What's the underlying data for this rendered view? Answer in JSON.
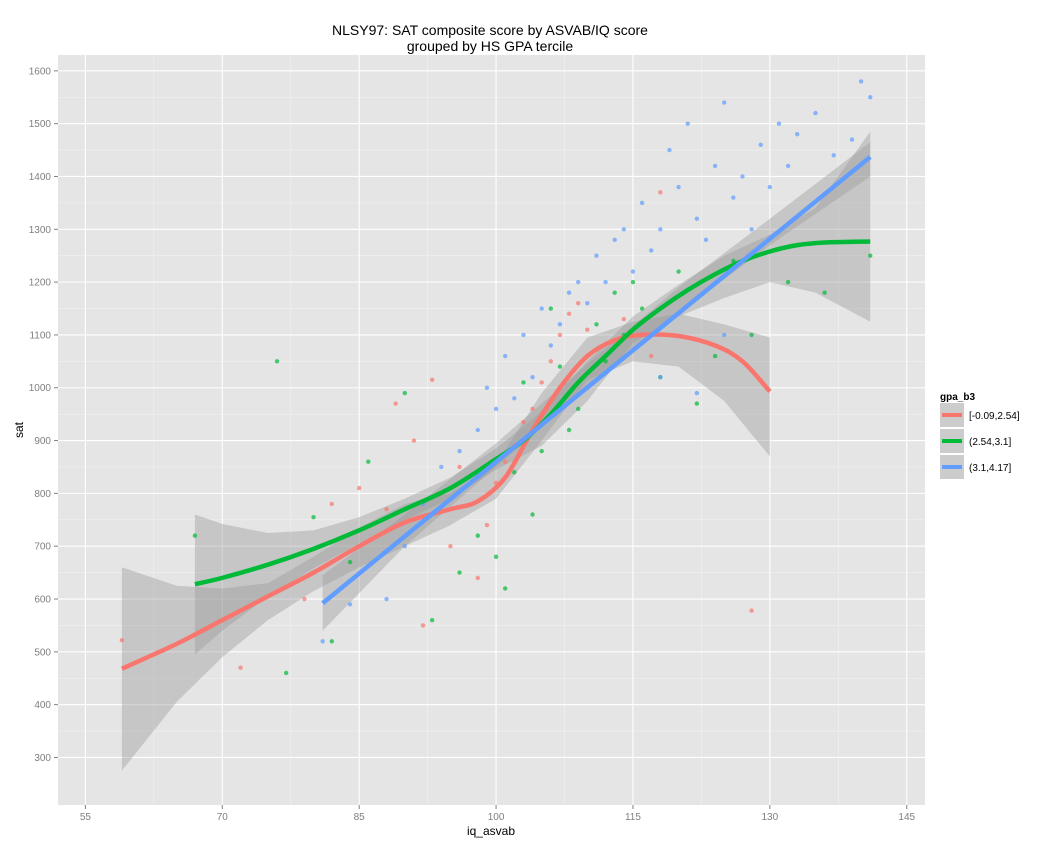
{
  "chart_data": {
    "type": "scatter",
    "title": "NLSY97: SAT composite score by ASVAB/IQ score",
    "subtitle": "grouped by HS GPA tercile",
    "xlabel": "iq_asvab",
    "ylabel": "sat",
    "xlim": [
      52,
      147
    ],
    "ylim": [
      210,
      1630
    ],
    "x_ticks": [
      55,
      70,
      85,
      100,
      115,
      130,
      145
    ],
    "y_ticks": [
      300,
      400,
      500,
      600,
      700,
      800,
      900,
      1000,
      1100,
      1200,
      1300,
      1400,
      1500,
      1600
    ],
    "grid": true,
    "legend": {
      "title": "gpa_b3",
      "position": "right",
      "entries": [
        "[-0.09,2.54]",
        "(2.54,3.1]",
        "(3.1,4.17]"
      ]
    },
    "series": [
      {
        "name": "[-0.09,2.54]",
        "color": "#F8766D",
        "smooth": [
          [
            59,
            468
          ],
          [
            65,
            515
          ],
          [
            70,
            560
          ],
          [
            75,
            605
          ],
          [
            80,
            650
          ],
          [
            85,
            700
          ],
          [
            90,
            745
          ],
          [
            95,
            770
          ],
          [
            98,
            785
          ],
          [
            101,
            830
          ],
          [
            104,
            920
          ],
          [
            107,
            1000
          ],
          [
            110,
            1060
          ],
          [
            113,
            1090
          ],
          [
            116,
            1100
          ],
          [
            120,
            1098
          ],
          [
            124,
            1080
          ],
          [
            127,
            1050
          ],
          [
            130,
            993
          ]
        ],
        "band_upper": [
          [
            59,
            660
          ],
          [
            65,
            625
          ],
          [
            70,
            620
          ],
          [
            75,
            630
          ],
          [
            80,
            680
          ],
          [
            85,
            735
          ],
          [
            90,
            780
          ],
          [
            95,
            800
          ],
          [
            100,
            855
          ],
          [
            105,
            990
          ],
          [
            110,
            1095
          ],
          [
            115,
            1125
          ],
          [
            120,
            1140
          ],
          [
            125,
            1120
          ],
          [
            130,
            1095
          ]
        ],
        "band_lower": [
          [
            59,
            275
          ],
          [
            65,
            405
          ],
          [
            70,
            490
          ],
          [
            75,
            560
          ],
          [
            80,
            615
          ],
          [
            85,
            660
          ],
          [
            90,
            700
          ],
          [
            95,
            740
          ],
          [
            100,
            790
          ],
          [
            105,
            900
          ],
          [
            110,
            1015
          ],
          [
            115,
            1050
          ],
          [
            120,
            1040
          ],
          [
            125,
            975
          ],
          [
            130,
            870
          ]
        ],
        "points": [
          [
            59,
            522
          ],
          [
            72,
            470
          ],
          [
            79,
            600
          ],
          [
            82,
            780
          ],
          [
            85,
            810
          ],
          [
            88,
            770
          ],
          [
            89,
            970
          ],
          [
            91,
            900
          ],
          [
            92,
            550
          ],
          [
            93,
            1015
          ],
          [
            95,
            700
          ],
          [
            96,
            850
          ],
          [
            98,
            640
          ],
          [
            99,
            740
          ],
          [
            100,
            820
          ],
          [
            101,
            860
          ],
          [
            102,
            890
          ],
          [
            103,
            935
          ],
          [
            104,
            960
          ],
          [
            105,
            1010
          ],
          [
            106,
            1050
          ],
          [
            107,
            1100
          ],
          [
            108,
            1140
          ],
          [
            109,
            1160
          ],
          [
            110,
            1110
          ],
          [
            112,
            1060
          ],
          [
            114,
            1130
          ],
          [
            117,
            1060
          ],
          [
            118,
            1370
          ],
          [
            128,
            578
          ]
        ]
      },
      {
        "name": "(2.54,3.1]",
        "color": "#00BA38",
        "smooth": [
          [
            67,
            628
          ],
          [
            70,
            640
          ],
          [
            75,
            665
          ],
          [
            80,
            695
          ],
          [
            85,
            730
          ],
          [
            90,
            770
          ],
          [
            95,
            810
          ],
          [
            100,
            865
          ],
          [
            103,
            900
          ],
          [
            106,
            950
          ],
          [
            109,
            1010
          ],
          [
            112,
            1060
          ],
          [
            115,
            1110
          ],
          [
            118,
            1150
          ],
          [
            121,
            1185
          ],
          [
            124,
            1215
          ],
          [
            127,
            1240
          ],
          [
            130,
            1258
          ],
          [
            133,
            1270
          ],
          [
            136,
            1275
          ],
          [
            141,
            1277
          ]
        ],
        "band_upper": [
          [
            67,
            760
          ],
          [
            70,
            742
          ],
          [
            75,
            725
          ],
          [
            80,
            730
          ],
          [
            85,
            755
          ],
          [
            90,
            790
          ],
          [
            95,
            830
          ],
          [
            100,
            885
          ],
          [
            105,
            955
          ],
          [
            110,
            1050
          ],
          [
            115,
            1135
          ],
          [
            120,
            1195
          ],
          [
            125,
            1250
          ],
          [
            130,
            1290
          ],
          [
            135,
            1340
          ],
          [
            141,
            1485
          ]
        ],
        "band_lower": [
          [
            67,
            495
          ],
          [
            70,
            540
          ],
          [
            75,
            605
          ],
          [
            80,
            658
          ],
          [
            85,
            705
          ],
          [
            90,
            750
          ],
          [
            95,
            790
          ],
          [
            100,
            845
          ],
          [
            105,
            890
          ],
          [
            110,
            975
          ],
          [
            115,
            1085
          ],
          [
            120,
            1135
          ],
          [
            125,
            1170
          ],
          [
            130,
            1200
          ],
          [
            135,
            1180
          ],
          [
            141,
            1125
          ]
        ],
        "points": [
          [
            67,
            720
          ],
          [
            76,
            1050
          ],
          [
            77,
            460
          ],
          [
            80,
            755
          ],
          [
            82,
            520
          ],
          [
            84,
            670
          ],
          [
            86,
            860
          ],
          [
            90,
            990
          ],
          [
            93,
            560
          ],
          [
            96,
            650
          ],
          [
            98,
            720
          ],
          [
            100,
            680
          ],
          [
            101,
            620
          ],
          [
            102,
            840
          ],
          [
            103,
            1010
          ],
          [
            104,
            760
          ],
          [
            105,
            880
          ],
          [
            106,
            1150
          ],
          [
            107,
            1040
          ],
          [
            108,
            920
          ],
          [
            109,
            960
          ],
          [
            110,
            1000
          ],
          [
            111,
            1120
          ],
          [
            112,
            1050
          ],
          [
            113,
            1180
          ],
          [
            114,
            1100
          ],
          [
            115,
            1200
          ],
          [
            116,
            1150
          ],
          [
            118,
            1020
          ],
          [
            120,
            1220
          ],
          [
            122,
            970
          ],
          [
            124,
            1060
          ],
          [
            126,
            1240
          ],
          [
            128,
            1100
          ],
          [
            132,
            1200
          ],
          [
            136,
            1180
          ],
          [
            141,
            1250
          ]
        ]
      },
      {
        "name": "(3.1,4.17]",
        "color": "#619CFF",
        "smooth": [
          [
            81,
            592
          ],
          [
            141,
            1437
          ]
        ],
        "band_upper": [
          [
            81,
            645
          ],
          [
            90,
            760
          ],
          [
            100,
            895
          ],
          [
            110,
            1045
          ],
          [
            120,
            1190
          ],
          [
            130,
            1320
          ],
          [
            141,
            1465
          ]
        ],
        "band_lower": [
          [
            81,
            540
          ],
          [
            90,
            700
          ],
          [
            100,
            850
          ],
          [
            110,
            1000
          ],
          [
            120,
            1140
          ],
          [
            130,
            1270
          ],
          [
            141,
            1400
          ]
        ],
        "points": [
          [
            81,
            520
          ],
          [
            84,
            590
          ],
          [
            88,
            600
          ],
          [
            90,
            700
          ],
          [
            92,
            780
          ],
          [
            94,
            850
          ],
          [
            96,
            880
          ],
          [
            98,
            920
          ],
          [
            99,
            1000
          ],
          [
            100,
            960
          ],
          [
            101,
            1060
          ],
          [
            102,
            980
          ],
          [
            103,
            1100
          ],
          [
            104,
            1020
          ],
          [
            105,
            1150
          ],
          [
            106,
            1080
          ],
          [
            107,
            1120
          ],
          [
            108,
            1180
          ],
          [
            109,
            1200
          ],
          [
            110,
            1160
          ],
          [
            111,
            1250
          ],
          [
            112,
            1200
          ],
          [
            113,
            1280
          ],
          [
            114,
            1300
          ],
          [
            115,
            1220
          ],
          [
            116,
            1350
          ],
          [
            117,
            1260
          ],
          [
            118,
            1300
          ],
          [
            119,
            1450
          ],
          [
            120,
            1380
          ],
          [
            121,
            1500
          ],
          [
            122,
            1320
          ],
          [
            123,
            1280
          ],
          [
            124,
            1420
          ],
          [
            125,
            1540
          ],
          [
            126,
            1360
          ],
          [
            127,
            1400
          ],
          [
            128,
            1300
          ],
          [
            129,
            1460
          ],
          [
            130,
            1380
          ],
          [
            131,
            1500
          ],
          [
            132,
            1420
          ],
          [
            133,
            1480
          ],
          [
            135,
            1520
          ],
          [
            137,
            1440
          ],
          [
            139,
            1470
          ],
          [
            140,
            1580
          ],
          [
            141,
            1550
          ],
          [
            122,
            990
          ],
          [
            118,
            1020
          ],
          [
            125,
            1100
          ]
        ]
      }
    ]
  }
}
